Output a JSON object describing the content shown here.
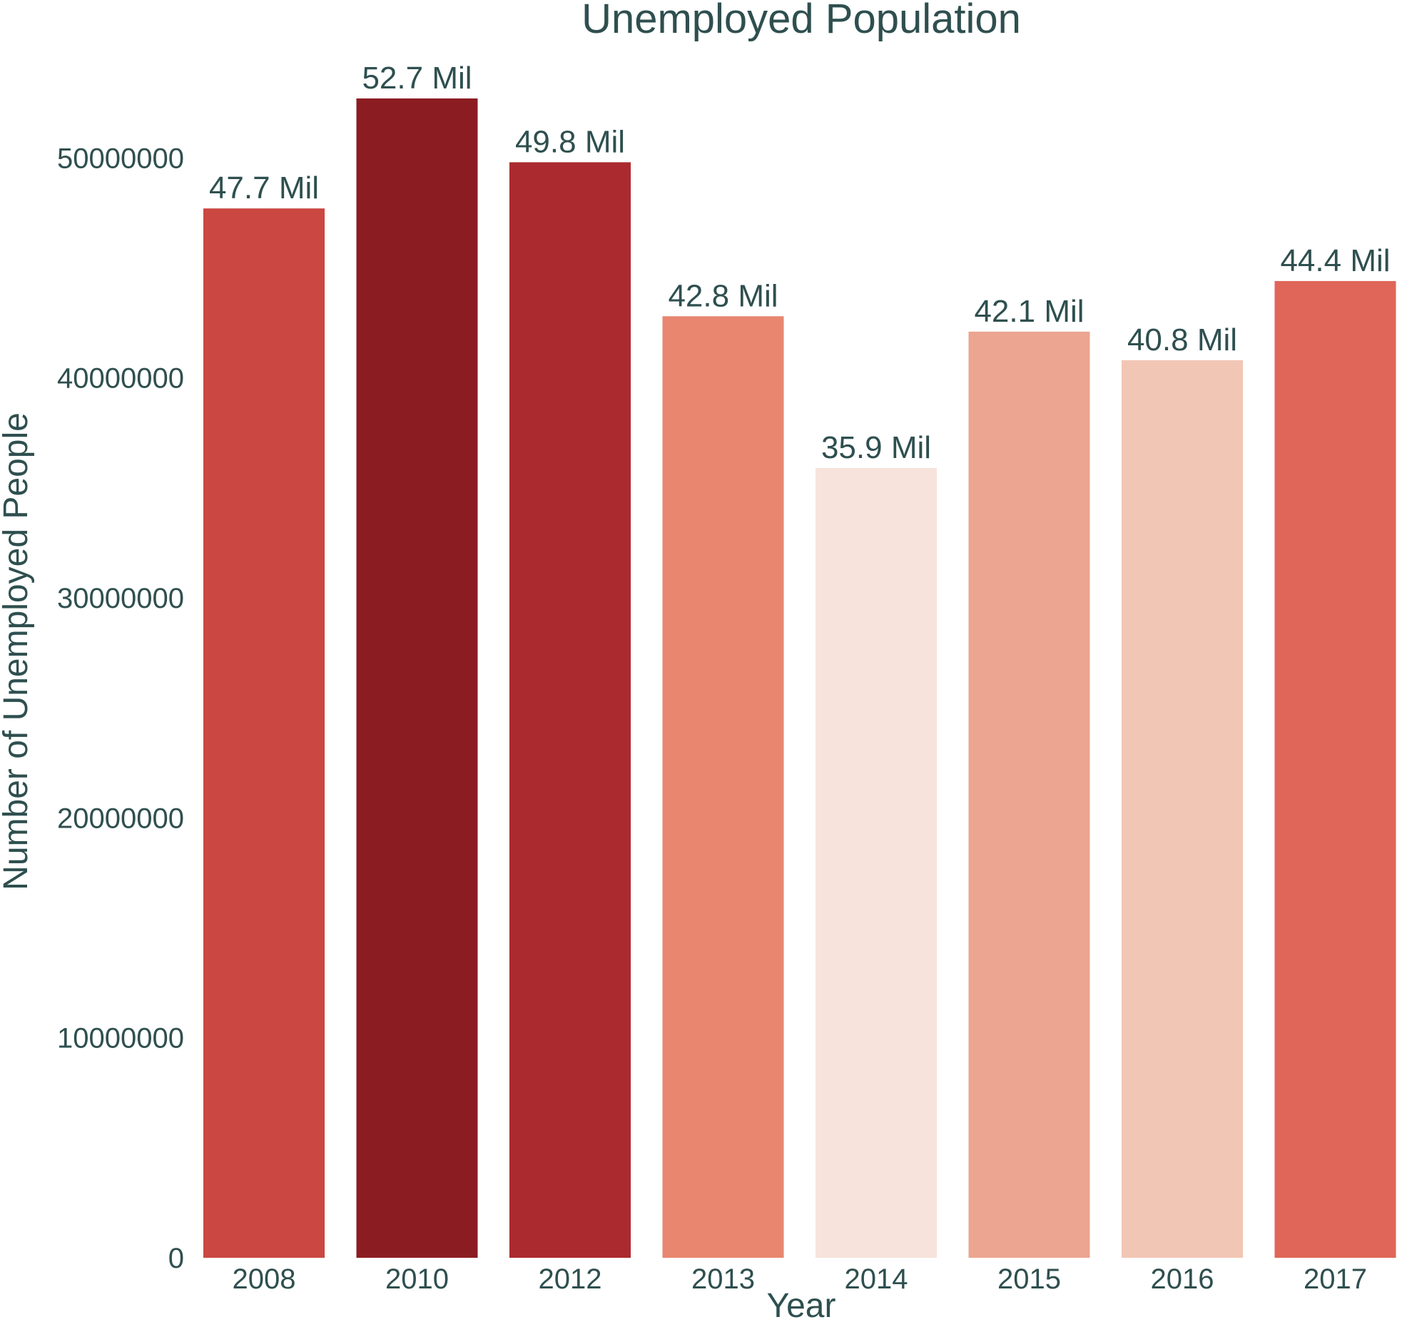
{
  "chart_data": {
    "type": "bar",
    "title": "Unemployed Population",
    "xlabel": "Year",
    "ylabel": "Number of Unemployed People",
    "categories": [
      "2008",
      "2010",
      "2012",
      "2013",
      "2014",
      "2015",
      "2016",
      "2017"
    ],
    "values": [
      47700000,
      52700000,
      49800000,
      42800000,
      35900000,
      42100000,
      40800000,
      44400000
    ],
    "data_labels": [
      "47.7 Mil",
      "52.7 Mil",
      "49.8 Mil",
      "42.8 Mil",
      "35.9 Mil",
      "42.1 Mil",
      "40.8 Mil",
      "44.4 Mil"
    ],
    "bar_colors": [
      "#cb4741",
      "#8b1d22",
      "#ab2a2f",
      "#e88670",
      "#f7e3db",
      "#eca590",
      "#f2c6b4",
      "#df6658"
    ],
    "yticks": [
      0,
      10000000,
      20000000,
      30000000,
      40000000,
      50000000
    ],
    "ytick_labels": [
      "0",
      "10000000",
      "20000000",
      "30000000",
      "40000000",
      "50000000"
    ],
    "ylim": [
      0,
      52700000
    ],
    "grid": false,
    "text_color": "#2f4f4f"
  }
}
